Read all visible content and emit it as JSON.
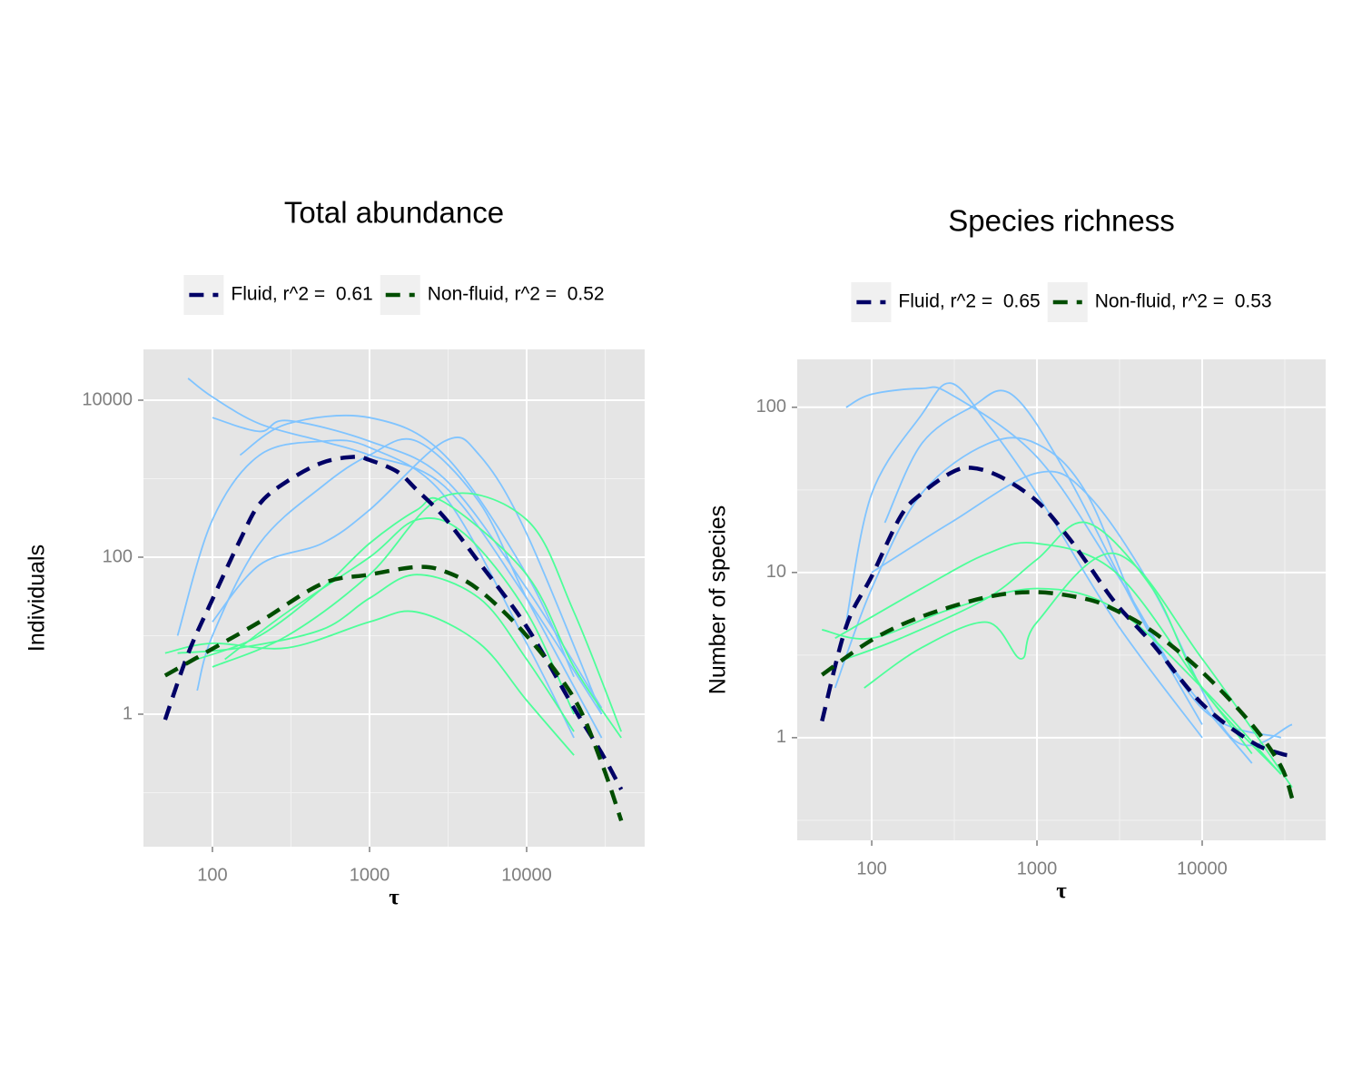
{
  "chart_data": [
    {
      "type": "line",
      "title": "Total abundance",
      "xlabel": "τ",
      "ylabel": "Individuals",
      "log_x": true,
      "log_y": true,
      "grid": true,
      "legend": "top",
      "xlim": [
        36.4,
        56400
      ],
      "xticks": [
        100,
        1000,
        10000
      ],
      "xminor": [
        316.2,
        3162,
        31623
      ],
      "ylim": [
        0.0205,
        44400
      ],
      "yticks": [
        1,
        100,
        10000
      ],
      "yminor": [
        0.1,
        10,
        1000
      ],
      "series": [
        {
          "name": "Fluid, r^2 =  0.61",
          "color": "#000066",
          "linetype": "dashed",
          "x": [
            50,
            70,
            100,
            150,
            200,
            300,
            500,
            800,
            1000,
            1500,
            2000,
            3000,
            5000,
            10000,
            20000,
            30000,
            40000
          ],
          "values": [
            0.85,
            5.9,
            29,
            165,
            480,
            930,
            1600,
            1900,
            1730,
            1230,
            720,
            320,
            85,
            13,
            1.2,
            0.32,
            0.11
          ]
        },
        {
          "name": "Non-fluid, r^2 =  0.52",
          "color": "#004d00",
          "linetype": "dashed",
          "x": [
            50,
            100,
            200,
            500,
            1000,
            2000,
            3000,
            5000,
            10000,
            20000,
            30000,
            40000
          ],
          "values": [
            3.1,
            6.8,
            15,
            46,
            60,
            75,
            66,
            38,
            10,
            1.6,
            0.24,
            0.044
          ]
        }
      ],
      "curves": [
        {
          "color": "#80c4ff",
          "x": [
            70,
            100,
            200,
            500,
            1000,
            3000,
            10000,
            30000
          ],
          "values": [
            19000,
            11000,
            5000,
            3000,
            2000,
            800,
            30,
            1
          ]
        },
        {
          "color": "#80c4ff",
          "x": [
            100,
            200,
            300,
            1000,
            3000,
            10000,
            30000
          ],
          "values": [
            6000,
            4000,
            5500,
            3000,
            1000,
            40,
            1.2
          ]
        },
        {
          "color": "#80c4ff",
          "x": [
            60,
            100,
            200,
            500,
            1000,
            3000,
            10000,
            20000
          ],
          "values": [
            10,
            300,
            2000,
            3000,
            2500,
            600,
            8,
            0.5
          ]
        },
        {
          "color": "#80c4ff",
          "x": [
            80,
            100,
            200,
            500,
            1000,
            2000,
            5000,
            10000,
            30000
          ],
          "values": [
            2,
            10,
            150,
            800,
            2000,
            3000,
            500,
            30,
            0.5
          ]
        },
        {
          "color": "#80c4ff",
          "x": [
            100,
            200,
            500,
            1000,
            3000,
            5000,
            10000,
            30000
          ],
          "values": [
            15,
            80,
            150,
            400,
            3000,
            2000,
            200,
            1
          ]
        },
        {
          "color": "#80c4ff",
          "x": [
            150,
            300,
            1000,
            3000,
            10000,
            20000
          ],
          "values": [
            2000,
            5000,
            6000,
            2000,
            60,
            3
          ]
        },
        {
          "color": "#4dff99",
          "x": [
            50,
            100,
            300,
            1000,
            2000,
            5000,
            10000,
            20000
          ],
          "values": [
            6,
            8,
            7,
            15,
            20,
            8,
            1.5,
            0.3
          ]
        },
        {
          "color": "#4dff99",
          "x": [
            80,
            200,
            500,
            1000,
            2000,
            3000,
            10000,
            20000,
            40000
          ],
          "values": [
            5,
            10,
            40,
            150,
            400,
            500,
            60,
            4,
            0.5
          ]
        },
        {
          "color": "#4dff99",
          "x": [
            100,
            300,
            1000,
            3000,
            10000,
            20000,
            40000
          ],
          "values": [
            4,
            10,
            60,
            600,
            300,
            20,
            0.6
          ]
        },
        {
          "color": "#4dff99",
          "x": [
            60,
            150,
            500,
            1000,
            2000,
            5000,
            10000,
            20000
          ],
          "values": [
            6,
            7,
            12,
            30,
            60,
            30,
            5,
            0.6
          ]
        },
        {
          "color": "#4dff99",
          "x": [
            120,
            300,
            1000,
            2000,
            4000,
            10000,
            20000
          ],
          "values": [
            5,
            20,
            100,
            300,
            200,
            20,
            1
          ]
        }
      ]
    },
    {
      "type": "line",
      "title": "Species richness",
      "xlabel": "τ",
      "ylabel": "Number of species",
      "log_x": true,
      "log_y": true,
      "grid": true,
      "legend": "top",
      "xlim": [
        35.4,
        55900
      ],
      "xticks": [
        100,
        1000,
        10000
      ],
      "xminor": [
        316.2,
        3162,
        31623
      ],
      "ylim": [
        0.239,
        195
      ],
      "yticks": [
        1,
        10,
        100
      ],
      "yminor": [
        0.316,
        3.16,
        31.6
      ],
      "series": [
        {
          "name": "Fluid, r^2 =  0.65",
          "color": "#000066",
          "linetype": "dashed",
          "x": [
            50,
            70,
            100,
            150,
            200,
            300,
            400,
            600,
            1000,
            1500,
            2000,
            3000,
            5000,
            10000,
            20000,
            30000,
            35000
          ],
          "values": [
            1.26,
            4.7,
            9.5,
            22,
            30,
            40,
            43,
            38,
            27,
            17,
            11.5,
            6.5,
            3.7,
            1.6,
            0.94,
            0.8,
            0.78
          ]
        },
        {
          "name": "Non-fluid, r^2 =  0.53",
          "color": "#004d00",
          "linetype": "dashed",
          "x": [
            50,
            100,
            200,
            500,
            1000,
            2000,
            3000,
            5000,
            10000,
            20000,
            30000,
            35000
          ],
          "values": [
            2.4,
            3.9,
            5.4,
            7.1,
            7.6,
            6.9,
            5.9,
            4.4,
            2.5,
            1.2,
            0.67,
            0.43
          ]
        }
      ],
      "curves": [
        {
          "color": "#80c4ff",
          "x": [
            70,
            100,
            200,
            300,
            1000,
            3000,
            10000,
            30000
          ],
          "values": [
            100,
            120,
            130,
            120,
            50,
            10,
            1.5,
            1
          ]
        },
        {
          "color": "#80c4ff",
          "x": [
            70,
            100,
            200,
            300,
            500,
            1000,
            3000,
            10000
          ],
          "values": [
            5,
            30,
            90,
            140,
            80,
            30,
            5,
            1
          ]
        },
        {
          "color": "#80c4ff",
          "x": [
            60,
            100,
            200,
            500,
            1000,
            2000,
            5000,
            20000
          ],
          "values": [
            2,
            8,
            30,
            60,
            60,
            30,
            4,
            0.7
          ]
        },
        {
          "color": "#80c4ff",
          "x": [
            120,
            200,
            400,
            700,
            1500,
            4000,
            10000
          ],
          "values": [
            20,
            60,
            100,
            120,
            40,
            6,
            1.2
          ]
        },
        {
          "color": "#80c4ff",
          "x": [
            100,
            300,
            1000,
            2000,
            5000,
            15000,
            35000
          ],
          "values": [
            10,
            20,
            40,
            30,
            8,
            1,
            1.2
          ]
        },
        {
          "color": "#4dff99",
          "x": [
            50,
            100,
            300,
            1000,
            3000,
            10000,
            30000
          ],
          "values": [
            4.5,
            4,
            6,
            8,
            6,
            2,
            0.6
          ]
        },
        {
          "color": "#4dff99",
          "x": [
            70,
            150,
            500,
            1000,
            2000,
            5000,
            10000,
            30000
          ],
          "values": [
            3,
            4,
            7,
            12,
            20,
            8,
            2,
            0.6
          ]
        },
        {
          "color": "#4dff99",
          "x": [
            90,
            200,
            500,
            800,
            1000,
            3000,
            10000,
            35000
          ],
          "values": [
            2,
            3.5,
            5,
            3,
            5,
            13,
            3,
            0.5
          ]
        },
        {
          "color": "#4dff99",
          "x": [
            60,
            200,
            500,
            1000,
            3000,
            10000,
            20000
          ],
          "values": [
            4,
            8,
            13,
            15,
            10,
            2,
            0.8
          ]
        }
      ]
    }
  ]
}
